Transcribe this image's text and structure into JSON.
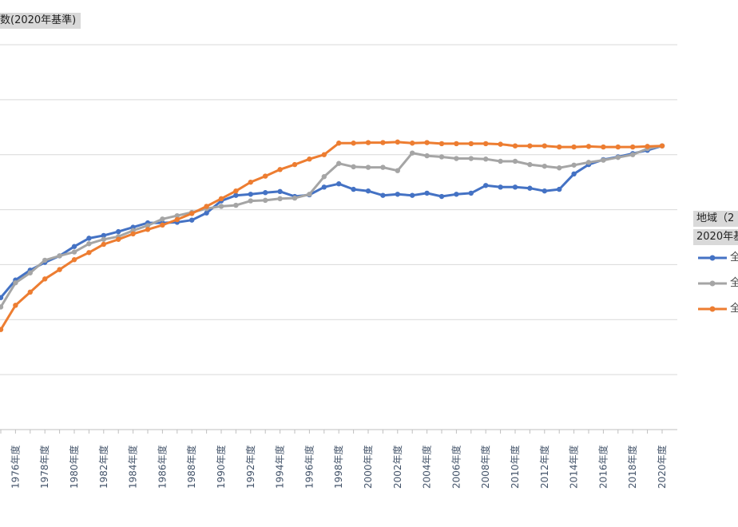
{
  "chart_data": {
    "type": "line",
    "ylabel": "数(2020年基準)",
    "legend_title": "地域（2",
    "legend_subtitle": "2020年基",
    "legend_position": "right",
    "ylim": [
      40,
      110
    ],
    "grid": true,
    "categories": [
      "1975年度",
      "1976年度",
      "1977年度",
      "1978年度",
      "1979年度",
      "1980年度",
      "1981年度",
      "1982年度",
      "1983年度",
      "1984年度",
      "1985年度",
      "1986年度",
      "1987年度",
      "1988年度",
      "1989年度",
      "1990年度",
      "1991年度",
      "1992年度",
      "1993年度",
      "1994年度",
      "1995年度",
      "1996年度",
      "1997年度",
      "1998年度",
      "1999年度",
      "2000年度",
      "2001年度",
      "2002年度",
      "2003年度",
      "2004年度",
      "2005年度",
      "2006年度",
      "2007年度",
      "2008年度",
      "2009年度",
      "2010年度",
      "2011年度",
      "2012年度",
      "2013年度",
      "2014年度",
      "2015年度",
      "2016年度",
      "2017年度",
      "2018年度",
      "2019年度",
      "2020年度"
    ],
    "tick_labels": [
      "1976年度",
      "1978年度",
      "1980年度",
      "1982年度",
      "1984年度",
      "1986年度",
      "1988年度",
      "1990年度",
      "1992年度",
      "1994年度",
      "1996年度",
      "1998年度",
      "2000年度",
      "2002年度",
      "2004年度",
      "2006年度",
      "2008年度",
      "2010年度",
      "2012年度",
      "2014年度",
      "2016年度",
      "2018年度",
      "2020年度"
    ],
    "series": [
      {
        "name": "全",
        "color": "#4472c4",
        "values": [
          64.0,
          67.2,
          69.0,
          70.4,
          71.6,
          73.3,
          74.8,
          75.3,
          76.0,
          76.8,
          77.6,
          77.6,
          77.7,
          78.1,
          79.4,
          81.6,
          82.6,
          82.8,
          83.1,
          83.3,
          82.4,
          82.7,
          84.1,
          84.7,
          83.7,
          83.4,
          82.6,
          82.8,
          82.6,
          83.0,
          82.4,
          82.8,
          83.0,
          84.4,
          84.1,
          84.1,
          83.9,
          83.4,
          83.7,
          86.5,
          88.2,
          89.1,
          89.6,
          90.2,
          90.8,
          91.6
        ]
      },
      {
        "name": "全",
        "color": "#a5a5a5",
        "values": [
          62.3,
          66.7,
          68.5,
          70.8,
          71.6,
          72.3,
          73.8,
          74.6,
          75.1,
          76.2,
          77.1,
          78.3,
          78.9,
          79.5,
          80.2,
          80.6,
          80.8,
          81.6,
          81.7,
          82.0,
          82.1,
          82.8,
          86.0,
          88.4,
          87.8,
          87.7,
          87.7,
          87.1,
          90.3,
          89.8,
          89.6,
          89.3,
          89.3,
          89.2,
          88.8,
          88.8,
          88.2,
          87.9,
          87.6,
          88.1,
          88.6,
          89.0,
          89.5,
          90.0,
          91.1,
          91.6
        ]
      },
      {
        "name": "全",
        "color": "#ed7d31",
        "values": [
          58.2,
          62.6,
          65.0,
          67.4,
          69.1,
          70.9,
          72.2,
          73.7,
          74.6,
          75.6,
          76.4,
          77.2,
          78.2,
          79.3,
          80.6,
          82.0,
          83.4,
          85.0,
          86.1,
          87.3,
          88.2,
          89.2,
          90.0,
          92.1,
          92.1,
          92.2,
          92.2,
          92.3,
          92.1,
          92.2,
          92.0,
          92.0,
          92.0,
          92.0,
          91.9,
          91.6,
          91.6,
          91.6,
          91.4,
          91.4,
          91.5,
          91.4,
          91.4,
          91.4,
          91.5,
          91.6
        ]
      }
    ]
  }
}
